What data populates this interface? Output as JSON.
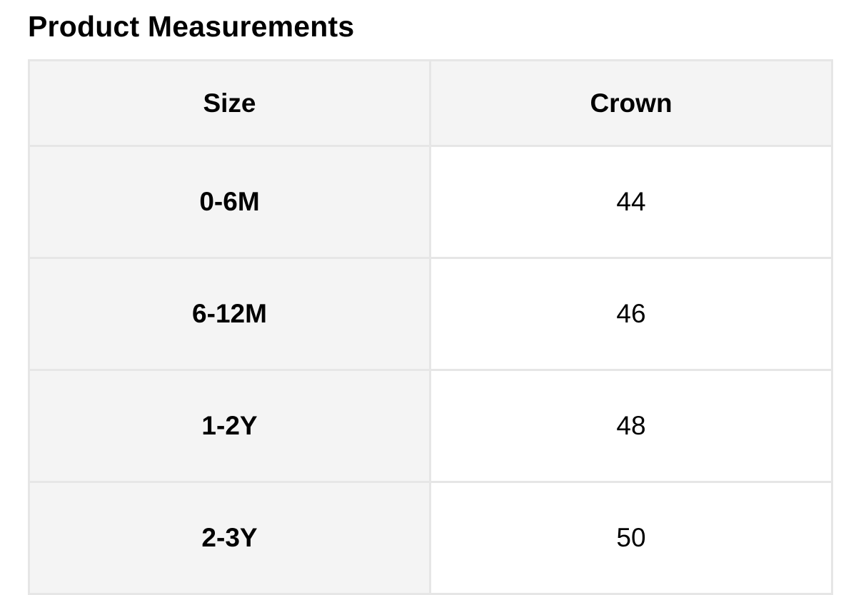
{
  "title": "Product Measurements",
  "table": {
    "headers": [
      "Size",
      "Crown"
    ],
    "rows": [
      [
        "0-6M",
        "44"
      ],
      [
        "6-12M",
        "46"
      ],
      [
        "1-2Y",
        "48"
      ],
      [
        "2-3Y",
        "50"
      ]
    ]
  }
}
